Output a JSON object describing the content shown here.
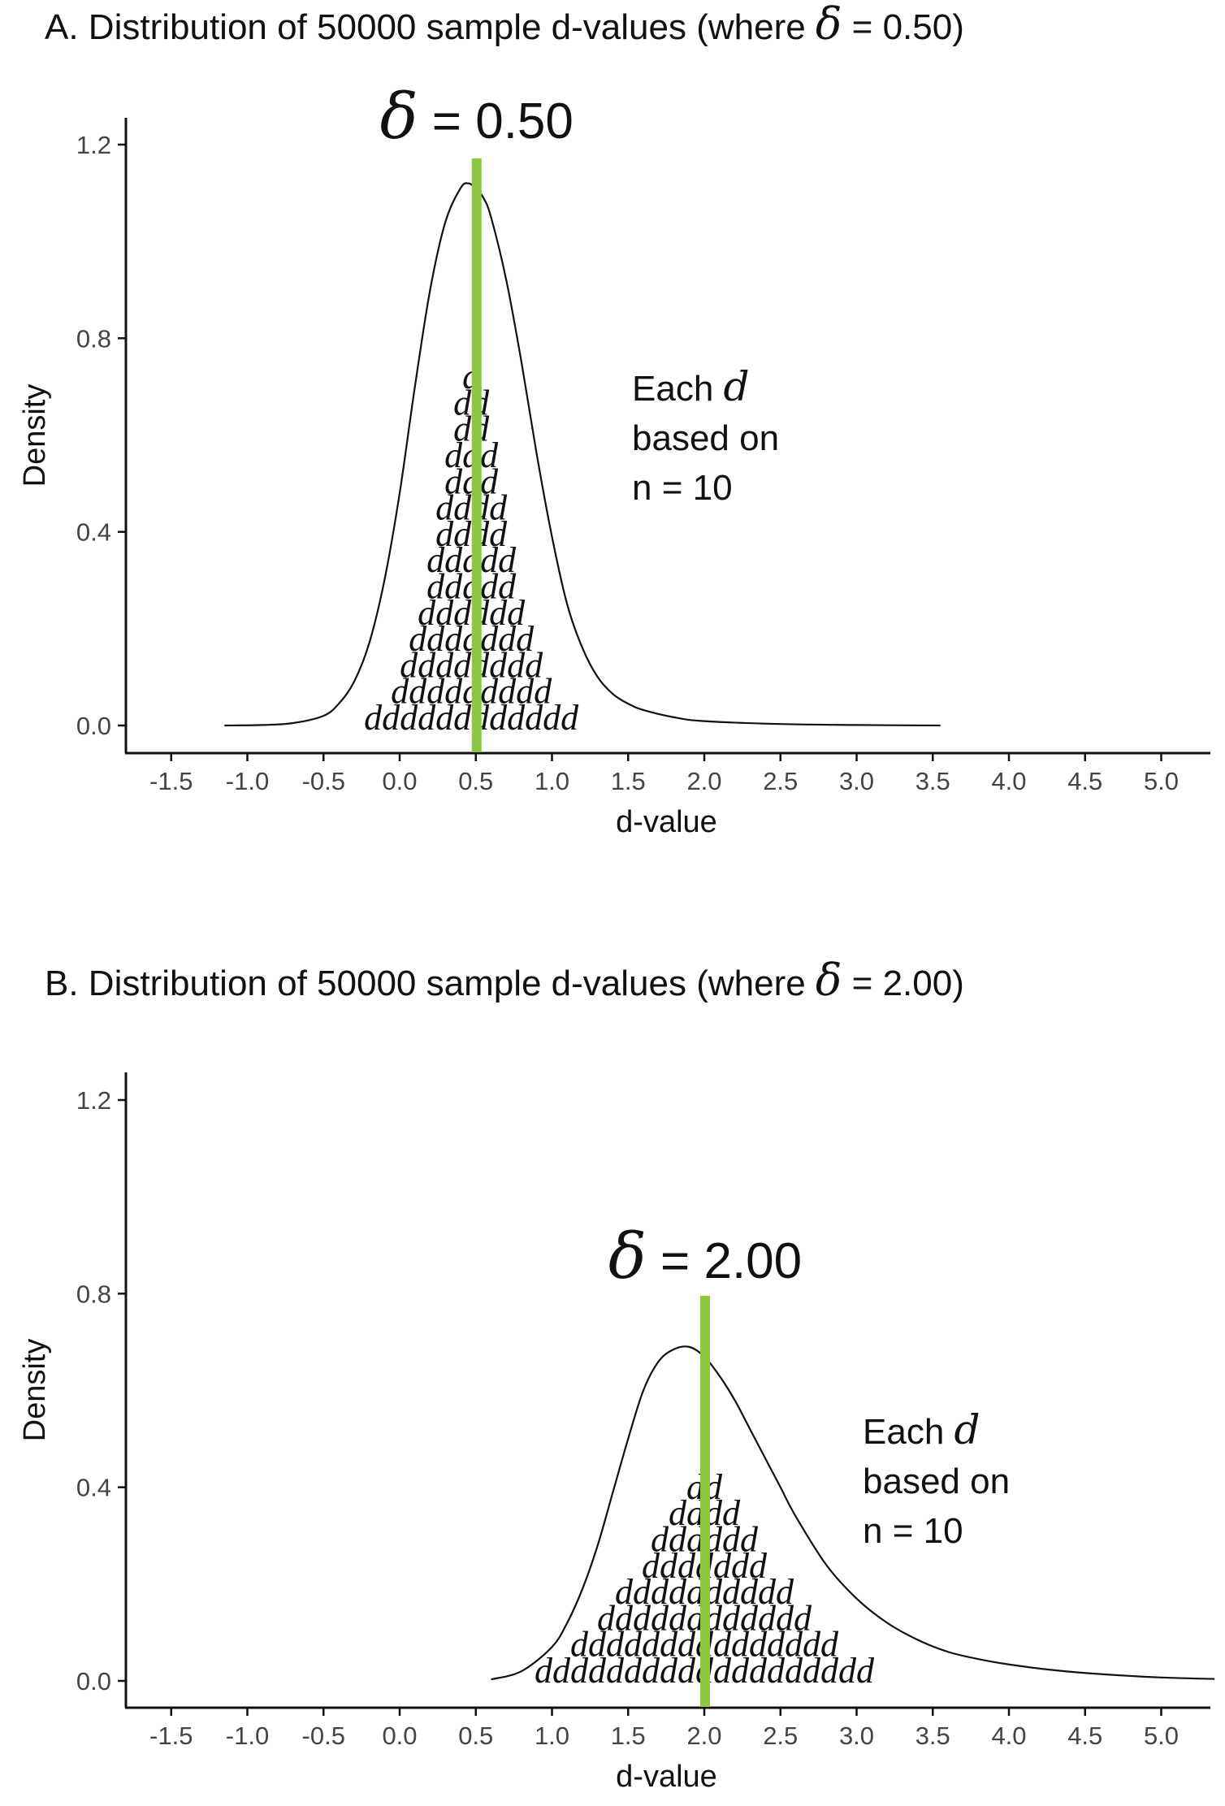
{
  "chart_data": [
    {
      "type": "area",
      "title_prefix": "A. Distribution of 50000 sample d-values (where ",
      "title_delta": "δ",
      "title_suffix": " = 0.50)",
      "xlabel": "d-value",
      "ylabel": "Density",
      "xlim": [
        -1.75,
        5.35
      ],
      "ylim": [
        -0.06,
        1.27
      ],
      "x_ticks": [
        "-1.5",
        "-1.0",
        "-0.5",
        "0.0",
        "0.5",
        "1.0",
        "1.5",
        "2.0",
        "2.5",
        "3.0",
        "3.5",
        "4.0",
        "4.5",
        "5.0"
      ],
      "y_ticks": [
        "0.0",
        "0.4",
        "0.8",
        "1.2"
      ],
      "delta": 0.5,
      "delta_label_symbol": "δ",
      "delta_label_value": "= 0.50",
      "line_color": "#8dc63f",
      "annotation": {
        "line1": "Each ",
        "line1_d": "d",
        "line2": "based on",
        "line3": "n = 10",
        "x": 1.5,
        "y": 0.77
      },
      "density": {
        "x": [
          -1.15,
          -0.9,
          -0.7,
          -0.5,
          -0.4,
          -0.3,
          -0.2,
          -0.1,
          0.0,
          0.1,
          0.2,
          0.3,
          0.4,
          0.45,
          0.5,
          0.55,
          0.6,
          0.7,
          0.8,
          0.9,
          1.0,
          1.1,
          1.2,
          1.3,
          1.4,
          1.5,
          1.6,
          1.8,
          2.0,
          2.5,
          3.0,
          3.55
        ],
        "y": [
          0.0,
          0.001,
          0.005,
          0.02,
          0.045,
          0.09,
          0.17,
          0.3,
          0.48,
          0.7,
          0.9,
          1.04,
          1.11,
          1.12,
          1.11,
          1.09,
          1.05,
          0.92,
          0.75,
          0.56,
          0.39,
          0.25,
          0.16,
          0.1,
          0.065,
          0.045,
          0.032,
          0.017,
          0.009,
          0.003,
          0.001,
          0.0
        ]
      },
      "d_rows": [
        "dddddddddddd",
        "ddddddddd",
        "dddddddd",
        "ddddddd",
        "dddddd",
        "ddddd",
        "ddddd",
        "dddd",
        "dddd",
        "ddd",
        "ddd",
        "dd",
        "dd",
        "d"
      ],
      "d_rows_center": 0.47
    },
    {
      "type": "area",
      "title_prefix": "B. Distribution of 50000 sample d-values (where ",
      "title_delta": "δ",
      "title_suffix": " = 2.00)",
      "xlabel": "d-value",
      "ylabel": "Density",
      "xlim": [
        -1.75,
        5.35
      ],
      "ylim": [
        -0.06,
        1.27
      ],
      "x_ticks": [
        "-1.5",
        "-1.0",
        "-0.5",
        "0.0",
        "0.5",
        "1.0",
        "1.5",
        "2.0",
        "2.5",
        "3.0",
        "3.5",
        "4.0",
        "4.5",
        "5.0"
      ],
      "y_ticks": [
        "0.0",
        "0.4",
        "0.8",
        "1.2"
      ],
      "delta": 2.0,
      "delta_label_symbol": "δ",
      "delta_label_value": "= 2.00",
      "line_color": "#8dc63f",
      "annotation": {
        "line1": "Each ",
        "line1_d": "d",
        "line2": "based on",
        "line3": "n = 10",
        "x": 3.0,
        "y": 0.52
      },
      "density": {
        "x": [
          0.6,
          0.8,
          1.0,
          1.1,
          1.2,
          1.3,
          1.4,
          1.5,
          1.6,
          1.7,
          1.8,
          1.9,
          2.0,
          2.1,
          2.2,
          2.3,
          2.4,
          2.5,
          2.6,
          2.8,
          3.0,
          3.2,
          3.4,
          3.6,
          3.8,
          4.0,
          4.3,
          4.6,
          5.0,
          5.35
        ],
        "y": [
          0.003,
          0.02,
          0.07,
          0.12,
          0.19,
          0.28,
          0.39,
          0.5,
          0.6,
          0.66,
          0.685,
          0.69,
          0.67,
          0.63,
          0.58,
          0.52,
          0.46,
          0.4,
          0.34,
          0.24,
          0.17,
          0.12,
          0.085,
          0.06,
          0.045,
          0.034,
          0.022,
          0.014,
          0.007,
          0.004
        ]
      },
      "d_rows": [
        "ddddddddddddddddddd",
        "ddddddddddddddd",
        "dddddddddddd",
        "dddddddddd",
        "ddddddd",
        "dddddd",
        "dddd",
        "dd"
      ],
      "d_rows_center": 2.0
    }
  ]
}
